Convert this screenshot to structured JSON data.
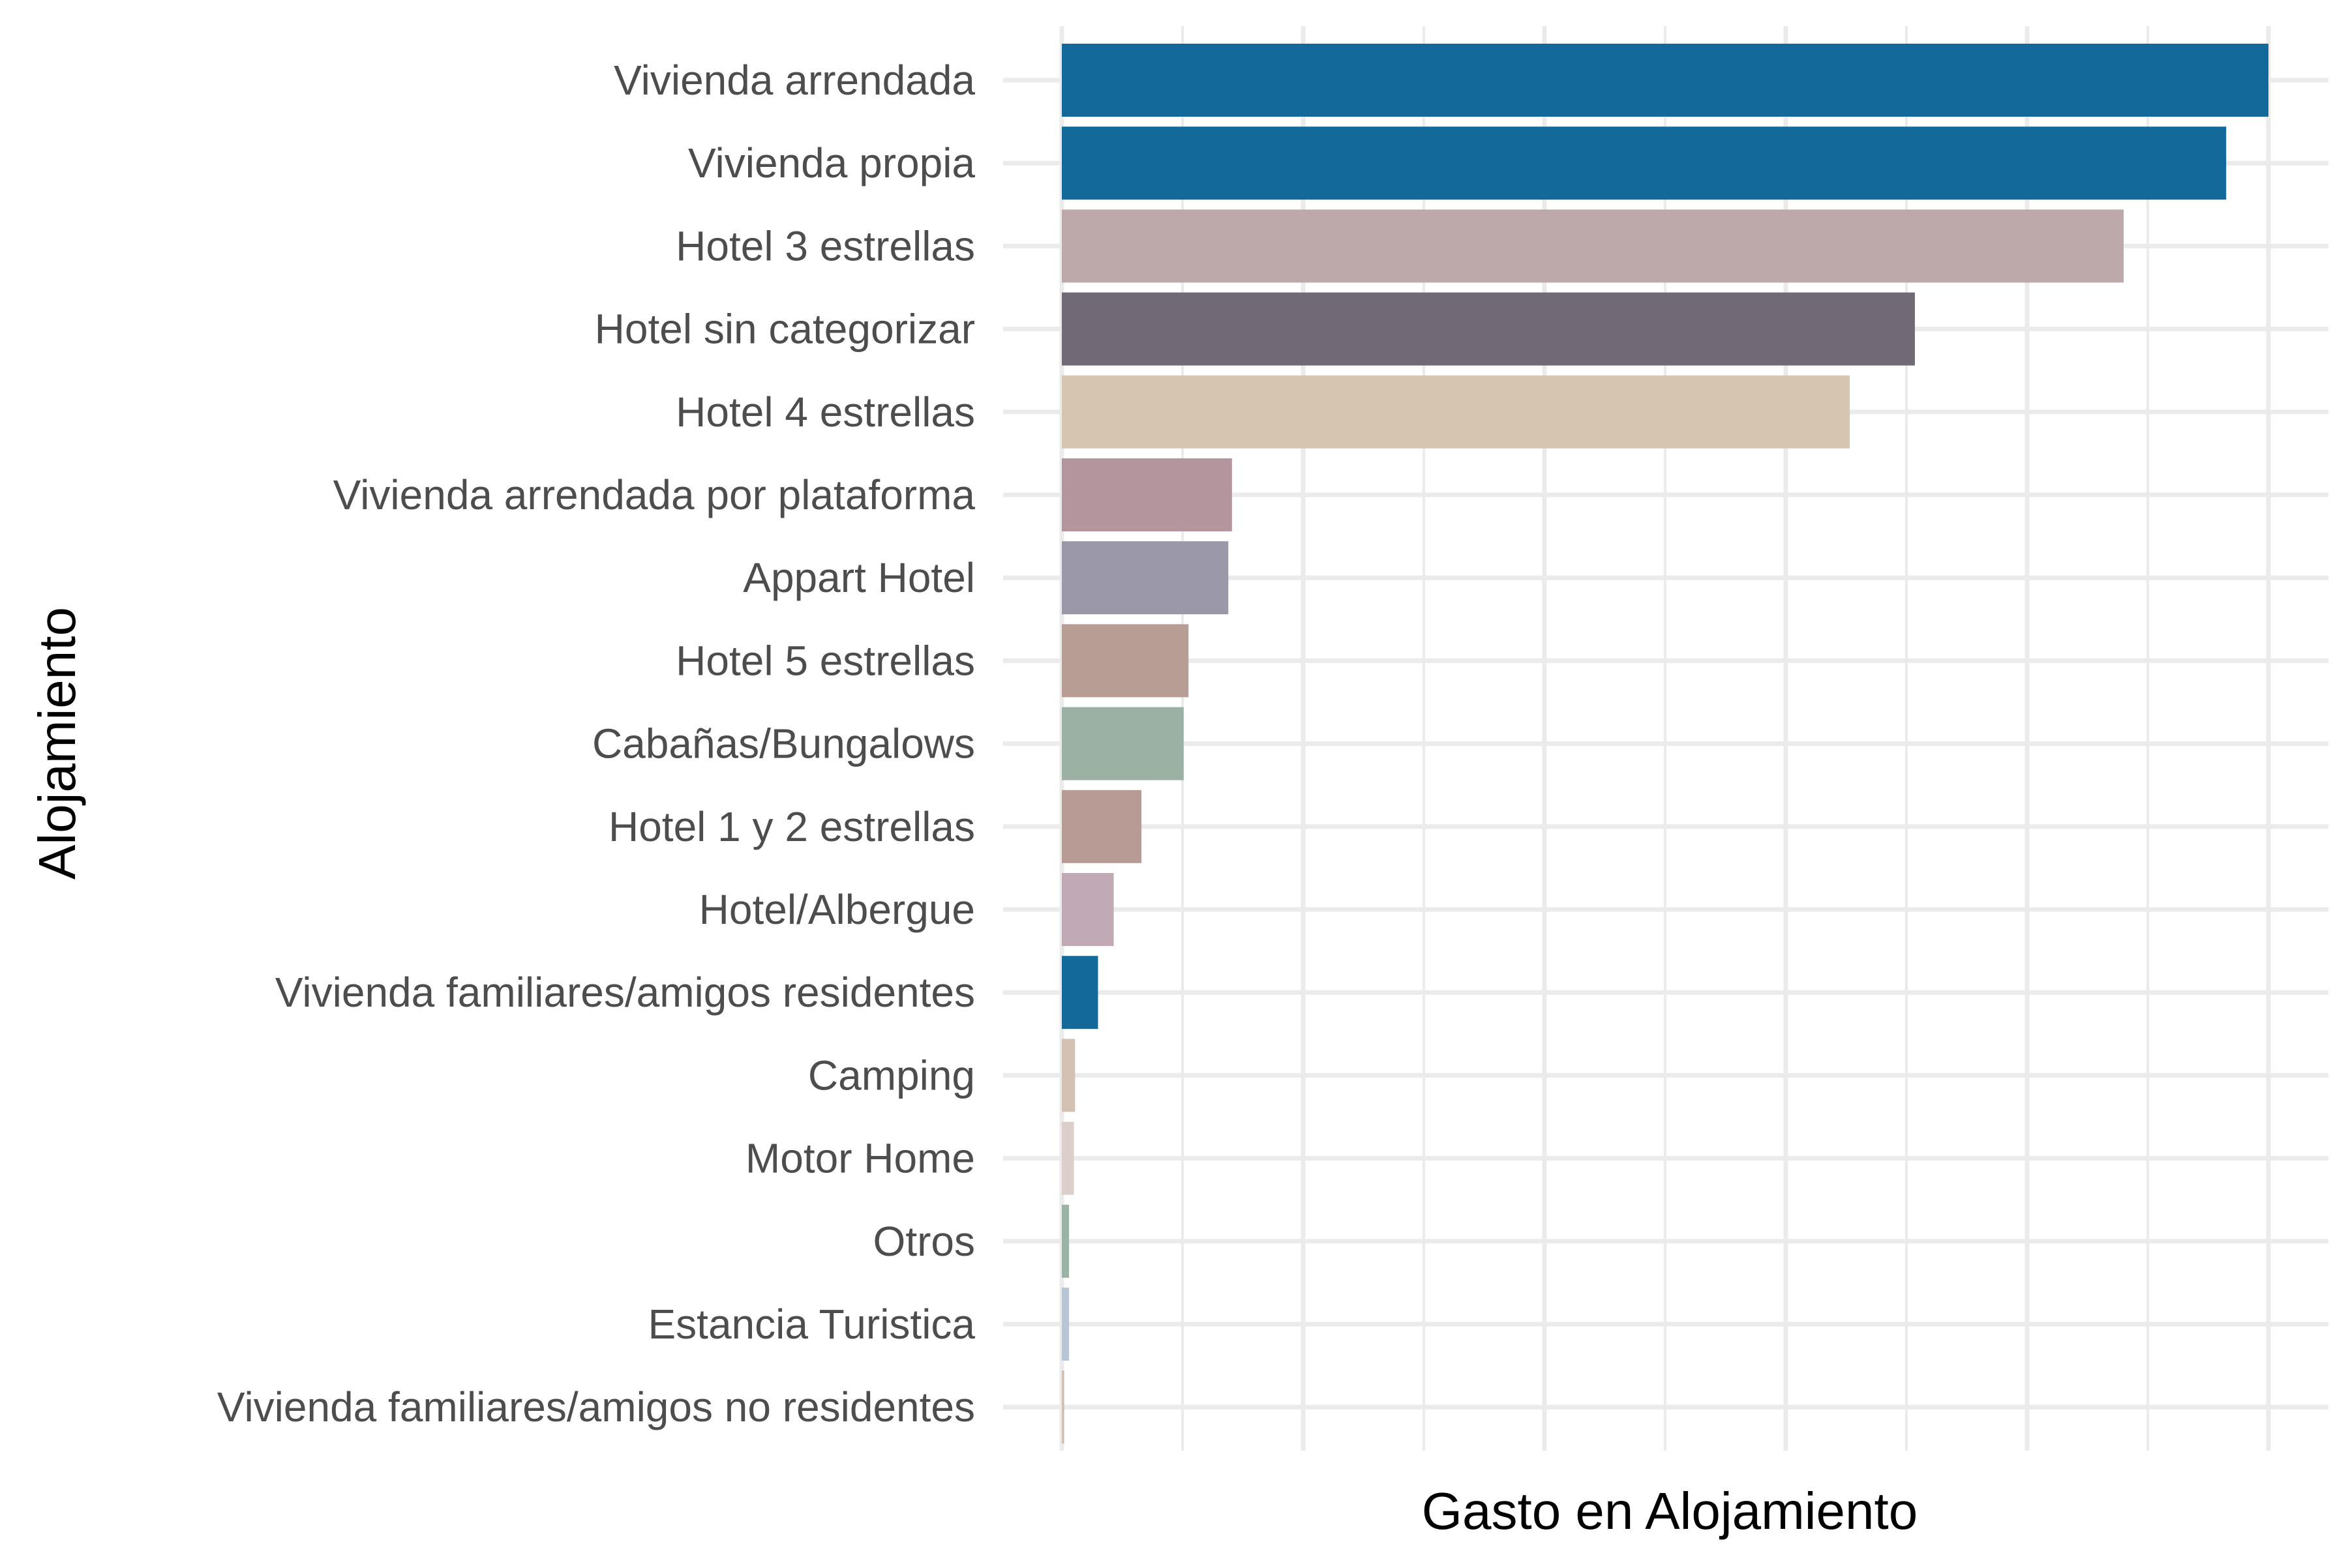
{
  "chart_data": {
    "type": "bar",
    "orientation": "horizontal",
    "title": "",
    "xlabel": "Gasto en Alojamiento",
    "ylabel": "Alojamiento",
    "x_tick_labels_shown": false,
    "grid": true,
    "legend": "none",
    "xlim": [
      0,
      115
    ],
    "categories": [
      "Vivienda arrendada",
      "Vivienda propia",
      "Hotel 3 estrellas",
      "Hotel sin categorizar",
      "Hotel 4 estrellas",
      "Vivienda arrendada por plataforma",
      "Appart Hotel",
      "Hotel 5 estrellas",
      "Cabañas/Bungalows",
      "Hotel 1 y 2 estrellas",
      "Hotel/Albergue",
      "Vivienda familiares/amigos residentes",
      "Camping",
      "Motor Home",
      "Otros",
      "Estancia Turistica",
      "Vivienda familiares/amigos no residentes"
    ],
    "values": [
      100,
      96.5,
      88,
      70.7,
      65.3,
      14.1,
      13.8,
      10.5,
      10.1,
      6.6,
      4.3,
      3.0,
      1.1,
      1.0,
      0.6,
      0.6,
      0.2
    ],
    "colors": [
      "#136a9a",
      "#136a9a",
      "#bda8aa",
      "#716a76",
      "#d6c6b1",
      "#b4959e",
      "#9a98a9",
      "#b89d94",
      "#9bb1a3",
      "#b89b94",
      "#c1aab6",
      "#136a9a",
      "#d4c1b4",
      "#dccfc9",
      "#9bb3a5",
      "#b7c5d6",
      "#d0bfb3"
    ]
  }
}
